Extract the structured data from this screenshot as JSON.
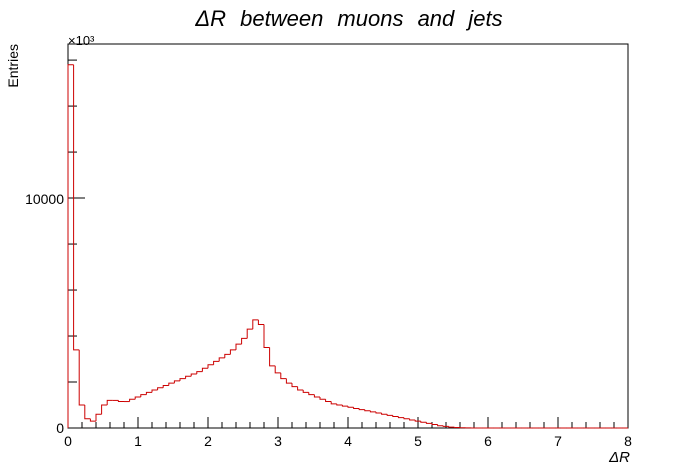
{
  "chart_data": {
    "type": "histogram",
    "title": "ΔR   between   muons   and   jets",
    "xlabel": "ΔR",
    "ylabel": "Entries",
    "y_multiplier": "×10³",
    "xlim": [
      0,
      8
    ],
    "ylim": [
      0,
      16700
    ],
    "x_tick_labels": [
      "0",
      "1",
      "2",
      "3",
      "4",
      "5",
      "6",
      "7",
      "8"
    ],
    "y_tick_labels": [
      "0",
      "10000"
    ],
    "grid": false,
    "line_color": "#cc0000",
    "bin_width": 0.08,
    "bin_values": [
      15800,
      3400,
      1000,
      400,
      300,
      600,
      1000,
      1200,
      1200,
      1150,
      1150,
      1250,
      1350,
      1450,
      1550,
      1650,
      1750,
      1850,
      1950,
      2050,
      2150,
      2250,
      2350,
      2450,
      2600,
      2750,
      2900,
      3050,
      3200,
      3400,
      3650,
      3900,
      4300,
      4700,
      4500,
      3500,
      2700,
      2400,
      2150,
      1950,
      1800,
      1650,
      1550,
      1450,
      1350,
      1250,
      1150,
      1050,
      1000,
      950,
      900,
      850,
      800,
      750,
      700,
      650,
      600,
      550,
      500,
      450,
      400,
      350,
      300,
      250,
      200,
      150,
      100,
      70,
      40,
      20,
      10,
      5,
      2,
      0,
      0,
      0,
      0,
      0,
      0,
      0,
      0,
      0,
      0,
      0,
      0,
      0,
      0,
      0,
      0,
      0,
      0,
      0,
      0,
      0,
      0,
      0,
      0,
      0,
      0,
      0
    ]
  }
}
